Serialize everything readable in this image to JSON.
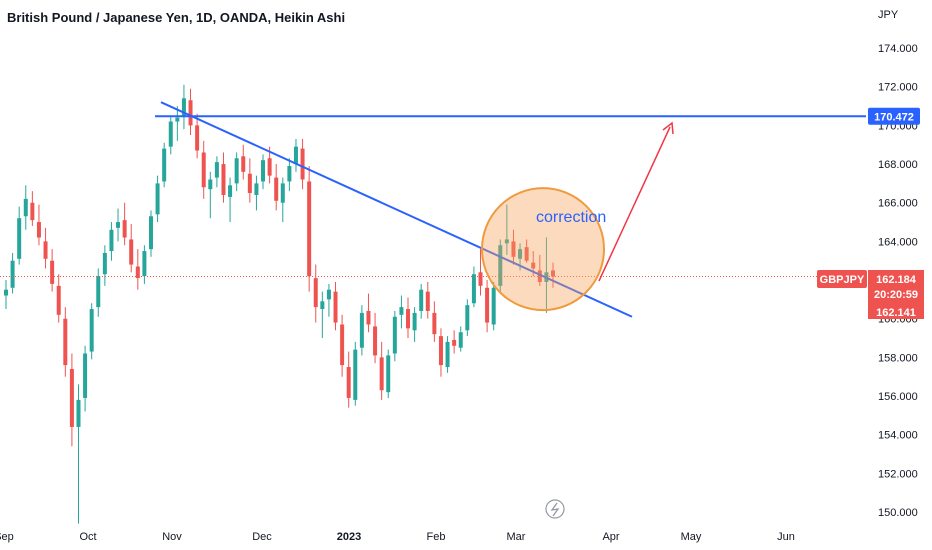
{
  "chart_data": {
    "type": "candlestick",
    "title": "British Pound / Japanese Yen, 1D, OANDA, Heikin Ashi",
    "currency": "JPY",
    "symbol": "GBPJPY",
    "ylim": [
      149.3,
      175.0
    ],
    "y_ticks": [
      "150.000",
      "152.000",
      "154.000",
      "156.000",
      "158.000",
      "160.000",
      "162.000",
      "164.000",
      "166.000",
      "168.000",
      "170.000",
      "172.000",
      "174.000"
    ],
    "x_ticks": [
      "Sep",
      "Oct",
      "Nov",
      "Dec",
      "2023",
      "Feb",
      "Mar",
      "Apr",
      "May",
      "Jun"
    ],
    "last_price": "162.184",
    "countdown": "20:20:59",
    "second_price": "162.141",
    "resistance_level": "170.472",
    "annotation": "correction",
    "colors": {
      "up": "#26a69a",
      "down": "#ef5350",
      "line": "#2962ff",
      "arrow": "#f23645",
      "circle": "#f7a35c"
    },
    "candles_ohlc": [
      [
        161.2,
        162.0,
        160.5,
        161.5
      ],
      [
        161.6,
        163.4,
        161.3,
        163.0
      ],
      [
        163.1,
        165.8,
        162.8,
        165.2
      ],
      [
        165.3,
        166.9,
        164.6,
        166.2
      ],
      [
        166.0,
        166.6,
        164.8,
        165.1
      ],
      [
        165.0,
        165.9,
        163.8,
        164.2
      ],
      [
        164.0,
        164.7,
        162.6,
        163.1
      ],
      [
        163.0,
        163.6,
        161.4,
        161.8
      ],
      [
        161.7,
        162.3,
        159.8,
        160.2
      ],
      [
        160.0,
        160.6,
        157.0,
        157.6
      ],
      [
        157.4,
        158.2,
        153.4,
        154.4
      ],
      [
        154.4,
        156.6,
        149.4,
        155.8
      ],
      [
        155.9,
        158.6,
        155.2,
        158.2
      ],
      [
        158.3,
        160.8,
        157.9,
        160.5
      ],
      [
        160.6,
        162.6,
        160.1,
        162.2
      ],
      [
        162.3,
        163.8,
        161.7,
        163.4
      ],
      [
        163.5,
        165.0,
        163.0,
        164.6
      ],
      [
        164.7,
        165.7,
        164.0,
        165.0
      ],
      [
        165.1,
        166.0,
        163.8,
        164.2
      ],
      [
        164.1,
        164.9,
        162.4,
        162.8
      ],
      [
        162.7,
        163.6,
        161.5,
        162.1
      ],
      [
        162.2,
        163.8,
        161.8,
        163.5
      ],
      [
        163.6,
        165.6,
        163.2,
        165.3
      ],
      [
        165.4,
        167.4,
        165.0,
        167.0
      ],
      [
        167.1,
        169.1,
        166.8,
        168.8
      ],
      [
        168.9,
        170.5,
        168.5,
        170.2
      ],
      [
        170.2,
        171.0,
        169.2,
        170.4
      ],
      [
        170.5,
        172.1,
        169.8,
        171.4
      ],
      [
        171.3,
        171.9,
        169.5,
        170.0
      ],
      [
        170.0,
        170.6,
        168.3,
        168.7
      ],
      [
        168.6,
        169.2,
        166.2,
        166.8
      ],
      [
        166.7,
        167.6,
        165.2,
        167.2
      ],
      [
        167.3,
        168.4,
        166.8,
        168.1
      ],
      [
        168.0,
        168.6,
        166.0,
        166.4
      ],
      [
        166.3,
        167.3,
        165.0,
        166.9
      ],
      [
        167.0,
        168.6,
        166.6,
        168.3
      ],
      [
        168.4,
        169.0,
        167.2,
        167.6
      ],
      [
        167.5,
        168.3,
        166.0,
        166.5
      ],
      [
        166.4,
        167.4,
        165.6,
        167.0
      ],
      [
        167.1,
        168.5,
        166.7,
        168.2
      ],
      [
        168.3,
        168.9,
        167.0,
        167.4
      ],
      [
        167.3,
        168.0,
        165.6,
        166.1
      ],
      [
        166.0,
        167.3,
        165.0,
        167.0
      ],
      [
        167.1,
        168.3,
        166.6,
        167.9
      ],
      [
        168.0,
        169.3,
        167.6,
        168.9
      ],
      [
        168.8,
        169.3,
        166.7,
        167.2
      ],
      [
        167.1,
        167.9,
        161.4,
        162.2
      ],
      [
        162.1,
        162.8,
        159.8,
        160.6
      ],
      [
        160.5,
        161.4,
        159.0,
        160.9
      ],
      [
        161.0,
        161.8,
        160.1,
        161.5
      ],
      [
        161.4,
        161.9,
        159.4,
        159.8
      ],
      [
        159.7,
        160.2,
        157.0,
        157.6
      ],
      [
        157.5,
        158.3,
        155.4,
        155.9
      ],
      [
        155.8,
        158.8,
        155.5,
        158.4
      ],
      [
        158.5,
        160.7,
        158.1,
        160.3
      ],
      [
        160.4,
        161.3,
        159.3,
        159.7
      ],
      [
        159.6,
        160.3,
        157.7,
        158.1
      ],
      [
        158.0,
        158.8,
        155.8,
        156.3
      ],
      [
        156.2,
        158.4,
        155.9,
        158.1
      ],
      [
        158.2,
        160.4,
        157.8,
        160.1
      ],
      [
        160.2,
        161.2,
        159.5,
        160.6
      ],
      [
        160.5,
        161.1,
        159.0,
        159.5
      ],
      [
        159.4,
        160.6,
        158.8,
        160.3
      ],
      [
        160.4,
        161.8,
        160.0,
        161.5
      ],
      [
        161.4,
        161.9,
        160.0,
        160.4
      ],
      [
        160.3,
        160.9,
        158.8,
        159.2
      ],
      [
        159.1,
        159.5,
        157.0,
        157.6
      ],
      [
        157.5,
        159.1,
        157.2,
        158.8
      ],
      [
        158.9,
        159.4,
        158.2,
        158.6
      ],
      [
        158.5,
        159.6,
        158.3,
        159.3
      ],
      [
        159.4,
        161.0,
        159.1,
        160.7
      ],
      [
        160.8,
        162.7,
        160.6,
        162.3
      ],
      [
        162.4,
        163.6,
        161.2,
        161.7
      ],
      [
        161.6,
        162.0,
        159.3,
        159.8
      ],
      [
        159.7,
        161.9,
        159.4,
        161.6
      ],
      [
        161.7,
        164.1,
        161.3,
        163.8
      ],
      [
        163.9,
        165.9,
        163.3,
        164.1
      ],
      [
        164.0,
        164.6,
        162.8,
        163.2
      ],
      [
        163.1,
        163.9,
        162.5,
        163.6
      ],
      [
        163.7,
        164.1,
        162.9,
        163.0
      ],
      [
        162.9,
        163.5,
        162.2,
        162.6
      ],
      [
        162.5,
        163.3,
        161.7,
        161.9
      ],
      [
        161.9,
        164.2,
        160.3,
        162.4
      ],
      [
        162.5,
        162.9,
        161.6,
        162.184
      ]
    ]
  }
}
